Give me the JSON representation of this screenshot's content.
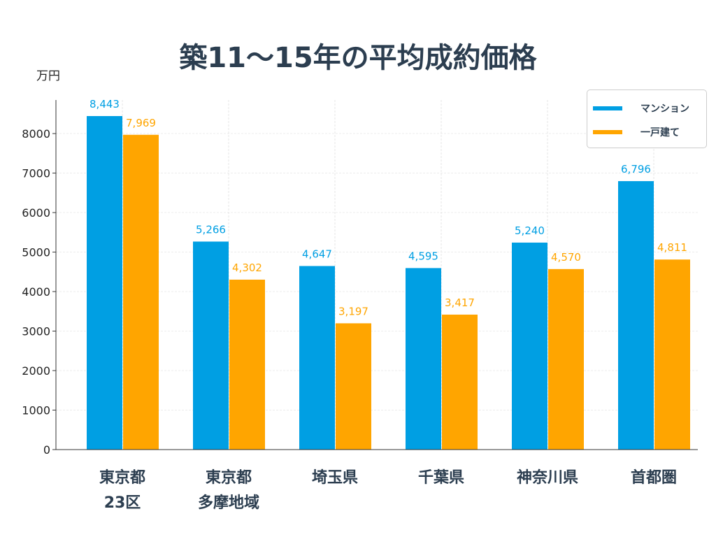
{
  "chart_data": {
    "type": "bar",
    "title": "築11〜15年の平均成約価格",
    "ylabel": "万円",
    "xlabel": "",
    "categories": [
      [
        "東京都",
        "23区"
      ],
      [
        "東京都",
        "多摩地域"
      ],
      [
        "埼玉県"
      ],
      [
        "千葉県"
      ],
      [
        "神奈川県"
      ],
      [
        "首都圏"
      ]
    ],
    "series": [
      {
        "name": "マンション",
        "color": "#009fe3",
        "values": [
          8443,
          5266,
          4647,
          4595,
          5240,
          6796
        ],
        "labels": [
          "8,443",
          "5,266",
          "4,647",
          "4,595",
          "5,240",
          "6,796"
        ]
      },
      {
        "name": "一戸建て",
        "color": "#ffa500",
        "values": [
          7969,
          4302,
          3197,
          3417,
          4570,
          4811
        ],
        "labels": [
          "7,969",
          "4,302",
          "3,197",
          "3,417",
          "4,570",
          "4,811"
        ]
      }
    ],
    "ylim": [
      0,
      8850
    ],
    "yticks": [
      0,
      1000,
      2000,
      3000,
      4000,
      5000,
      6000,
      7000,
      8000
    ],
    "grid": true,
    "legend": "top-right"
  }
}
